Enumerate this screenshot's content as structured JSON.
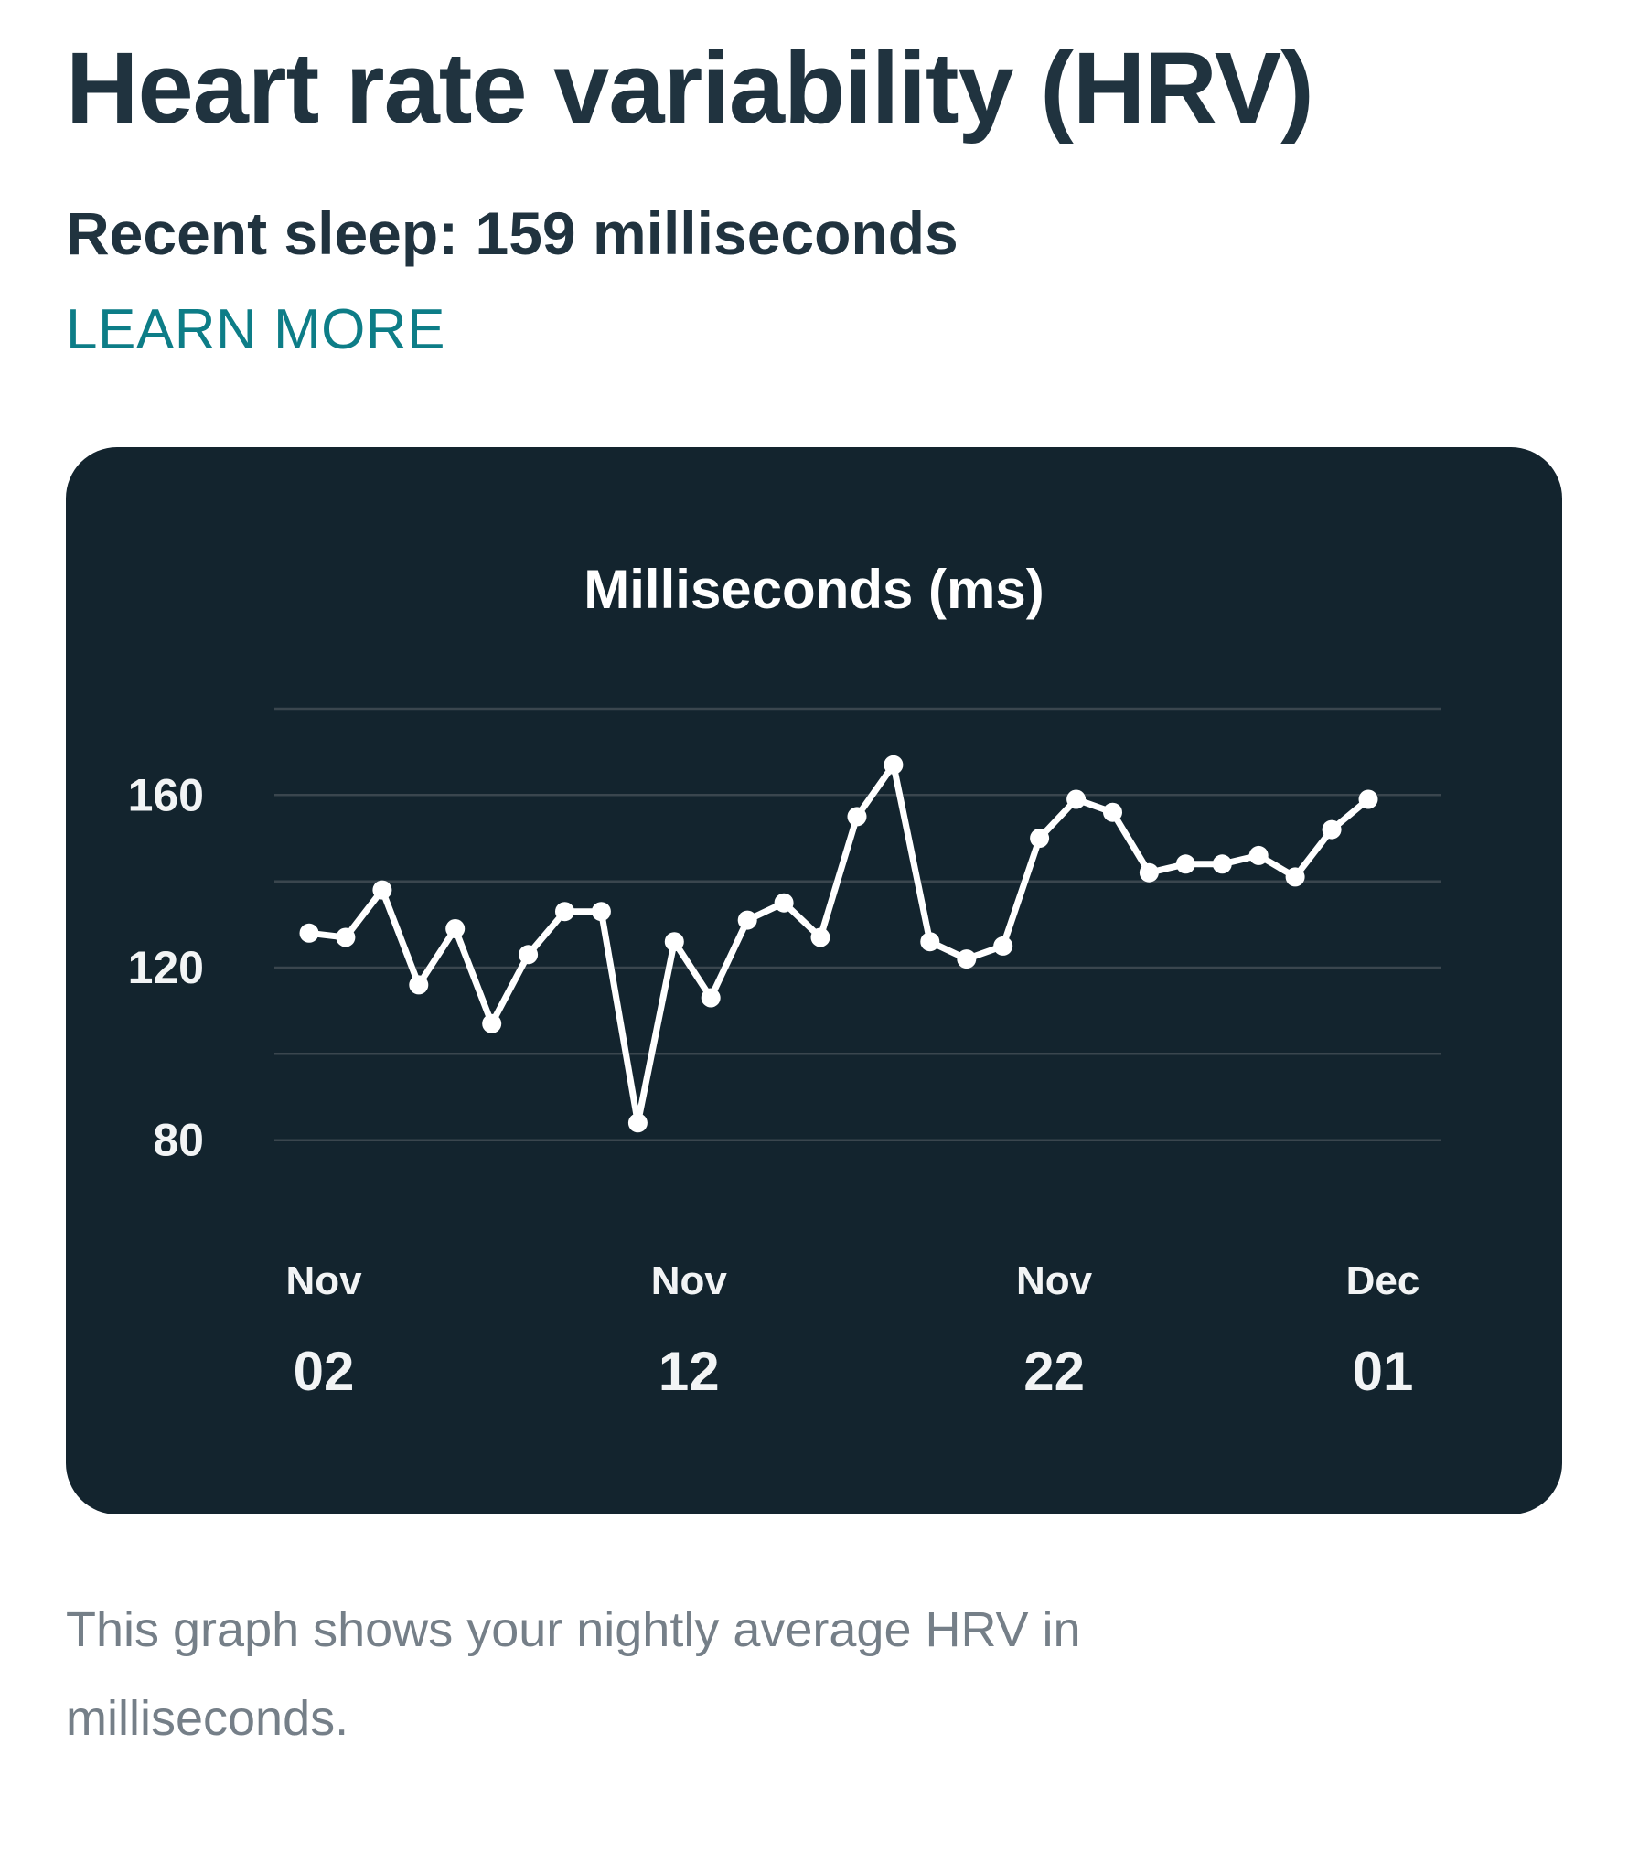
{
  "header": {
    "title": "Heart rate variability (HRV)",
    "subtitle": "Recent sleep: 159 milliseconds",
    "learn_more_label": "LEARN MORE"
  },
  "colors": {
    "card_bg": "#13242e",
    "accent_teal": "#0d7d87",
    "heading_text": "#20333f",
    "caption_text": "#757f88",
    "gridline": "#3a464e",
    "chart_line": "#ffffff",
    "axis_label": "#f2f4f5"
  },
  "chart_data": {
    "type": "line",
    "title": "Milliseconds (ms)",
    "unit": "ms",
    "grid": true,
    "legend": false,
    "ylim": [
      70,
      190
    ],
    "yticks": [
      160,
      120,
      80
    ],
    "gridline_values": [
      180,
      160,
      140,
      120,
      100,
      80
    ],
    "x": [
      "Nov 02",
      "Nov 03",
      "Nov 04",
      "Nov 05",
      "Nov 06",
      "Nov 07",
      "Nov 08",
      "Nov 09",
      "Nov 10",
      "Nov 11",
      "Nov 12",
      "Nov 13",
      "Nov 14",
      "Nov 15",
      "Nov 16",
      "Nov 17",
      "Nov 18",
      "Nov 19",
      "Nov 20",
      "Nov 21",
      "Nov 22",
      "Nov 23",
      "Nov 24",
      "Nov 25",
      "Nov 26",
      "Nov 27",
      "Nov 28",
      "Nov 29",
      "Nov 30",
      "Dec 01"
    ],
    "values": [
      128,
      127,
      138,
      116,
      129,
      107,
      123,
      133,
      133,
      84,
      126,
      113,
      131,
      135,
      127,
      155,
      167,
      126,
      122,
      125,
      150,
      159,
      156,
      142,
      144,
      144,
      146,
      141,
      152,
      159
    ],
    "xtick_labels": [
      {
        "index": 0,
        "month": "Nov",
        "day": "02"
      },
      {
        "index": 10,
        "month": "Nov",
        "day": "12"
      },
      {
        "index": 20,
        "month": "Nov",
        "day": "22"
      },
      {
        "index": 29,
        "month": "Dec",
        "day": "01"
      }
    ]
  },
  "caption": {
    "text": "This graph shows your nightly average HRV in milliseconds."
  }
}
